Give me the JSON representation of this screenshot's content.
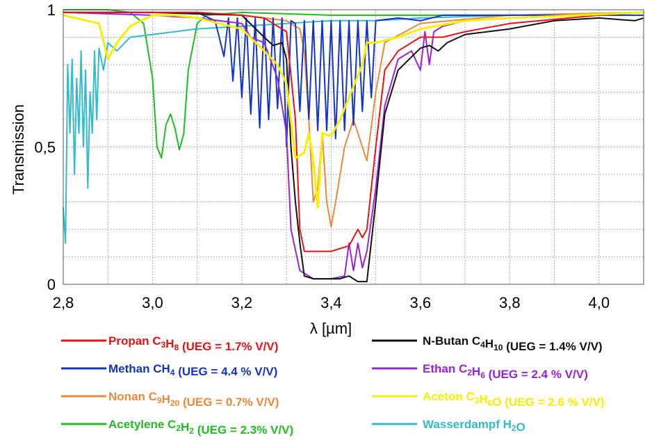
{
  "chart_data": {
    "type": "line",
    "xlabel": "λ [µm]",
    "ylabel": "Transmission",
    "xlim": [
      2.8,
      4.1
    ],
    "ylim": [
      0,
      1
    ],
    "x_ticks": [
      "2,8",
      "3,0",
      "3,2",
      "3,4",
      "3,6",
      "3,8",
      "4,0"
    ],
    "x_tick_values": [
      2.8,
      3.0,
      3.2,
      3.4,
      3.6,
      3.8,
      4.0
    ],
    "y_ticks": [
      "0",
      "0,5",
      "1"
    ],
    "y_tick_values": [
      0,
      0.5,
      1
    ],
    "grid": true,
    "legend_position": "bottom",
    "series": [
      {
        "name": "Propan",
        "formula": "C3H8",
        "formula_parts": [
          "C",
          "3",
          "H",
          "8"
        ],
        "ueg": "(UEG = 1.7% V/V)",
        "color": "#ee1111",
        "legend_col": 0,
        "legend_row": 0,
        "points": [
          [
            2.8,
            0.99
          ],
          [
            3.0,
            0.99
          ],
          [
            3.1,
            0.99
          ],
          [
            3.2,
            0.98
          ],
          [
            3.25,
            0.97
          ],
          [
            3.3,
            0.92
          ],
          [
            3.32,
            0.6
          ],
          [
            3.33,
            0.2
          ],
          [
            3.34,
            0.12
          ],
          [
            3.36,
            0.12
          ],
          [
            3.38,
            0.12
          ],
          [
            3.4,
            0.12
          ],
          [
            3.42,
            0.13
          ],
          [
            3.44,
            0.14
          ],
          [
            3.46,
            0.2
          ],
          [
            3.47,
            0.17
          ],
          [
            3.48,
            0.2
          ],
          [
            3.5,
            0.5
          ],
          [
            3.52,
            0.78
          ],
          [
            3.55,
            0.85
          ],
          [
            3.6,
            0.9
          ],
          [
            3.65,
            0.9
          ],
          [
            3.7,
            0.92
          ],
          [
            3.8,
            0.95
          ],
          [
            4.0,
            0.98
          ],
          [
            4.1,
            0.99
          ]
        ]
      },
      {
        "name": "N-Butan",
        "formula": "C4H10",
        "formula_parts": [
          "C",
          "4",
          "H",
          "10"
        ],
        "ueg": "(UEG = 1.4% V/V)",
        "color": "#111111",
        "legend_col": 1,
        "legend_row": 0,
        "points": [
          [
            2.8,
            0.99
          ],
          [
            3.0,
            0.99
          ],
          [
            3.2,
            0.98
          ],
          [
            3.25,
            0.9
          ],
          [
            3.27,
            0.87
          ],
          [
            3.29,
            0.88
          ],
          [
            3.3,
            0.82
          ],
          [
            3.31,
            0.5
          ],
          [
            3.32,
            0.3
          ],
          [
            3.33,
            0.15
          ],
          [
            3.34,
            0.03
          ],
          [
            3.36,
            0.02
          ],
          [
            3.4,
            0.02
          ],
          [
            3.42,
            0.02
          ],
          [
            3.44,
            0.03
          ],
          [
            3.46,
            0.01
          ],
          [
            3.48,
            0.01
          ],
          [
            3.5,
            0.3
          ],
          [
            3.52,
            0.62
          ],
          [
            3.55,
            0.78
          ],
          [
            3.6,
            0.86
          ],
          [
            3.62,
            0.87
          ],
          [
            3.64,
            0.85
          ],
          [
            3.66,
            0.88
          ],
          [
            3.7,
            0.91
          ],
          [
            3.8,
            0.93
          ],
          [
            3.9,
            0.96
          ],
          [
            4.0,
            0.97
          ],
          [
            4.08,
            0.96
          ],
          [
            4.1,
            0.97
          ]
        ]
      },
      {
        "name": "Methan",
        "formula": "CH4",
        "formula_parts": [
          "CH",
          "4"
        ],
        "ueg": "(UEG = 4.4 % V/V)",
        "color": "#1133cc",
        "legend_col": 0,
        "legend_row": 1,
        "points": [
          [
            2.8,
            0.99
          ],
          [
            3.1,
            0.99
          ],
          [
            3.14,
            0.96
          ],
          [
            3.16,
            0.83
          ],
          [
            3.17,
            0.97
          ],
          [
            3.18,
            0.74
          ],
          [
            3.19,
            0.97
          ],
          [
            3.2,
            0.68
          ],
          [
            3.21,
            0.97
          ],
          [
            3.22,
            0.62
          ],
          [
            3.23,
            0.97
          ],
          [
            3.24,
            0.57
          ],
          [
            3.25,
            0.97
          ],
          [
            3.26,
            0.6
          ],
          [
            3.27,
            0.97
          ],
          [
            3.28,
            0.64
          ],
          [
            3.29,
            0.97
          ],
          [
            3.3,
            0.5
          ],
          [
            3.31,
            0.96
          ],
          [
            3.32,
            0.95
          ],
          [
            3.33,
            0.63
          ],
          [
            3.34,
            0.96
          ],
          [
            3.35,
            0.6
          ],
          [
            3.36,
            0.96
          ],
          [
            3.37,
            0.56
          ],
          [
            3.38,
            0.96
          ],
          [
            3.39,
            0.56
          ],
          [
            3.4,
            0.96
          ],
          [
            3.41,
            0.53
          ],
          [
            3.42,
            0.96
          ],
          [
            3.43,
            0.56
          ],
          [
            3.44,
            0.96
          ],
          [
            3.45,
            0.58
          ],
          [
            3.46,
            0.96
          ],
          [
            3.47,
            0.63
          ],
          [
            3.48,
            0.96
          ],
          [
            3.49,
            0.68
          ],
          [
            3.5,
            0.96
          ],
          [
            3.55,
            0.97
          ],
          [
            3.6,
            0.96
          ],
          [
            3.65,
            0.98
          ],
          [
            3.8,
            0.98
          ],
          [
            4.1,
            0.98
          ]
        ]
      },
      {
        "name": "Ethan",
        "formula": "C2H6",
        "formula_parts": [
          "C",
          "2",
          "H",
          "6"
        ],
        "ueg": "(UEG = 2.4 % V/V)",
        "color": "#9922dd",
        "legend_col": 1,
        "legend_row": 1,
        "points": [
          [
            2.8,
            0.99
          ],
          [
            3.0,
            0.98
          ],
          [
            3.1,
            0.97
          ],
          [
            3.2,
            0.95
          ],
          [
            3.22,
            0.9
          ],
          [
            3.25,
            0.88
          ],
          [
            3.28,
            0.75
          ],
          [
            3.3,
            0.55
          ],
          [
            3.31,
            0.2
          ],
          [
            3.33,
            0.05
          ],
          [
            3.35,
            0.03
          ],
          [
            3.36,
            0.02
          ],
          [
            3.4,
            0.02
          ],
          [
            3.43,
            0.03
          ],
          [
            3.44,
            0.15
          ],
          [
            3.45,
            0.05
          ],
          [
            3.46,
            0.15
          ],
          [
            3.47,
            0.06
          ],
          [
            3.48,
            0.12
          ],
          [
            3.5,
            0.35
          ],
          [
            3.52,
            0.65
          ],
          [
            3.55,
            0.82
          ],
          [
            3.58,
            0.85
          ],
          [
            3.6,
            0.78
          ],
          [
            3.61,
            0.92
          ],
          [
            3.62,
            0.8
          ],
          [
            3.63,
            0.92
          ],
          [
            3.65,
            0.94
          ],
          [
            3.7,
            0.96
          ],
          [
            3.8,
            0.97
          ],
          [
            4.1,
            0.99
          ]
        ]
      },
      {
        "name": "Nonan",
        "formula": "C9H20",
        "formula_parts": [
          "C",
          "9",
          "H",
          "20"
        ],
        "ueg": "(UEG = 0.7% V/V)",
        "color": "#f0883a",
        "legend_col": 0,
        "legend_row": 2,
        "points": [
          [
            2.8,
            0.99
          ],
          [
            3.0,
            0.99
          ],
          [
            3.2,
            0.98
          ],
          [
            3.3,
            0.96
          ],
          [
            3.33,
            0.93
          ],
          [
            3.34,
            0.85
          ],
          [
            3.35,
            0.6
          ],
          [
            3.36,
            0.3
          ],
          [
            3.37,
            0.35
          ],
          [
            3.38,
            0.55
          ],
          [
            3.39,
            0.3
          ],
          [
            3.4,
            0.21
          ],
          [
            3.41,
            0.3
          ],
          [
            3.43,
            0.5
          ],
          [
            3.45,
            0.6
          ],
          [
            3.47,
            0.5
          ],
          [
            3.48,
            0.45
          ],
          [
            3.5,
            0.7
          ],
          [
            3.52,
            0.88
          ],
          [
            3.6,
            0.95
          ],
          [
            3.8,
            0.98
          ],
          [
            4.1,
            0.99
          ]
        ]
      },
      {
        "name": "Aceton",
        "formula": "C3H6O",
        "formula_parts": [
          "C",
          "3",
          "H",
          "6",
          "O"
        ],
        "ueg": "(UEG = 2.6 % V/V)",
        "color": "#f5f000",
        "legend_col": 1,
        "legend_row": 2,
        "points": [
          [
            2.8,
            0.98
          ],
          [
            2.88,
            0.95
          ],
          [
            2.9,
            0.82
          ],
          [
            2.92,
            0.88
          ],
          [
            2.95,
            0.94
          ],
          [
            3.0,
            0.98
          ],
          [
            3.05,
            0.98
          ],
          [
            3.1,
            0.97
          ],
          [
            3.15,
            0.95
          ],
          [
            3.2,
            0.93
          ],
          [
            3.25,
            0.85
          ],
          [
            3.28,
            0.8
          ],
          [
            3.3,
            0.73
          ],
          [
            3.32,
            0.46
          ],
          [
            3.34,
            0.48
          ],
          [
            3.35,
            0.55
          ],
          [
            3.36,
            0.45
          ],
          [
            3.37,
            0.28
          ],
          [
            3.38,
            0.55
          ],
          [
            3.4,
            0.54
          ],
          [
            3.42,
            0.6
          ],
          [
            3.45,
            0.72
          ],
          [
            3.47,
            0.8
          ],
          [
            3.48,
            0.88
          ],
          [
            3.5,
            0.88
          ],
          [
            3.55,
            0.9
          ],
          [
            3.6,
            0.93
          ],
          [
            3.7,
            0.96
          ],
          [
            3.8,
            0.97
          ],
          [
            4.1,
            0.99
          ]
        ]
      },
      {
        "name": "Acetylene",
        "formula": "C2H2",
        "formula_parts": [
          "C",
          "2",
          "H",
          "2"
        ],
        "ueg": "(UEG = 2.3% V/V)",
        "color": "#22bb22",
        "legend_col": 0,
        "legend_row": 3,
        "points": [
          [
            2.8,
            1.0
          ],
          [
            2.9,
            1.0
          ],
          [
            2.95,
            0.99
          ],
          [
            2.98,
            0.95
          ],
          [
            3.0,
            0.75
          ],
          [
            3.01,
            0.5
          ],
          [
            3.02,
            0.46
          ],
          [
            3.03,
            0.58
          ],
          [
            3.04,
            0.62
          ],
          [
            3.05,
            0.57
          ],
          [
            3.06,
            0.49
          ],
          [
            3.07,
            0.55
          ],
          [
            3.08,
            0.78
          ],
          [
            3.1,
            0.95
          ],
          [
            3.12,
            0.98
          ],
          [
            3.2,
            0.99
          ],
          [
            3.4,
            0.98
          ],
          [
            3.6,
            0.98
          ],
          [
            3.8,
            0.98
          ],
          [
            4.1,
            0.99
          ]
        ]
      },
      {
        "name": "Wasserdampf",
        "formula": "H2O",
        "formula_parts": [
          "H",
          "2",
          "O"
        ],
        "ueg": "",
        "color": "#33bbcc",
        "legend_col": 1,
        "legend_row": 3,
        "points": [
          [
            2.8,
            0.28
          ],
          [
            2.805,
            0.15
          ],
          [
            2.81,
            0.8
          ],
          [
            2.815,
            0.55
          ],
          [
            2.82,
            0.82
          ],
          [
            2.825,
            0.4
          ],
          [
            2.83,
            0.75
          ],
          [
            2.835,
            0.55
          ],
          [
            2.84,
            0.85
          ],
          [
            2.845,
            0.5
          ],
          [
            2.85,
            0.78
          ],
          [
            2.855,
            0.35
          ],
          [
            2.86,
            0.7
          ],
          [
            2.865,
            0.55
          ],
          [
            2.87,
            0.85
          ],
          [
            2.875,
            0.6
          ],
          [
            2.88,
            0.86
          ],
          [
            2.89,
            0.78
          ],
          [
            2.9,
            0.88
          ],
          [
            2.92,
            0.85
          ],
          [
            2.95,
            0.9
          ],
          [
            3.0,
            0.91
          ],
          [
            3.05,
            0.92
          ],
          [
            3.1,
            0.93
          ],
          [
            3.2,
            0.94
          ],
          [
            3.3,
            0.95
          ],
          [
            3.4,
            0.96
          ],
          [
            3.5,
            0.96
          ],
          [
            3.6,
            0.97
          ],
          [
            3.8,
            0.98
          ],
          [
            4.1,
            0.99
          ]
        ]
      }
    ]
  }
}
